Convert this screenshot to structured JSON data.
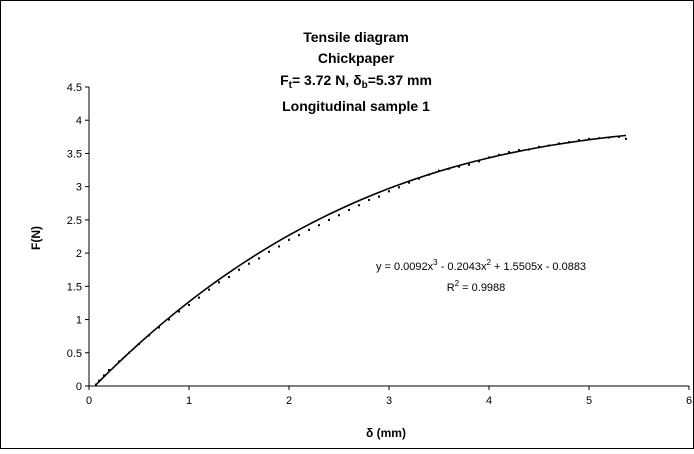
{
  "chart_data": {
    "type": "scatter",
    "title_lines": {
      "line1": "Tensile diagram",
      "line2": "Chickpaper",
      "line3_ft": "F",
      "line3_ft_sub": "t",
      "line3_mid": "= 3.72 N, ",
      "line3_delta": "δ",
      "line3_delta_sub": "b",
      "line3_end": "=5.37 mm",
      "line4": "Longitudinal sample 1"
    },
    "xlabel": "δ (mm)",
    "ylabel": "F(N)",
    "xlim": [
      0,
      6
    ],
    "ylim": [
      0,
      4.5
    ],
    "x_ticks": [
      "0",
      "1",
      "2",
      "3",
      "4",
      "5",
      "6"
    ],
    "y_ticks": [
      "0",
      "0.5",
      "1",
      "1.5",
      "2",
      "2.5",
      "3",
      "3.5",
      "4",
      "4.5"
    ],
    "grid": false,
    "legend": "none",
    "trendline": {
      "type": "polynomial",
      "order": 3,
      "coefficients": [
        0.0092,
        -0.2043,
        1.5505,
        -0.0883
      ],
      "x_range": [
        0.07,
        5.37
      ],
      "equation_parts": {
        "p1": "y = 0.0092x",
        "e1": "3",
        "p2": " - 0.2043x",
        "e2": "2",
        "p3": " + 1.5505x - 0.0883"
      },
      "r2_parts": {
        "r": "R",
        "e": "2",
        "rest": " = 0.9988"
      }
    },
    "series": [
      {
        "x": [
          0.07,
          0.1,
          0.15,
          0.2,
          0.3,
          0.4,
          0.5,
          0.6,
          0.7,
          0.8,
          0.9,
          1.0,
          1.1,
          1.2,
          1.3,
          1.4,
          1.5,
          1.6,
          1.7,
          1.8,
          1.9,
          2.0,
          2.1,
          2.2,
          2.3,
          2.4,
          2.5,
          2.6,
          2.7,
          2.8,
          2.9,
          3.0,
          3.1,
          3.2,
          3.3,
          3.4,
          3.5,
          3.6,
          3.7,
          3.8,
          3.9,
          4.0,
          4.1,
          4.2,
          4.3,
          4.4,
          4.5,
          4.6,
          4.7,
          4.8,
          4.9,
          5.0,
          5.1,
          5.2,
          5.3,
          5.37
        ],
        "y": [
          0.02,
          0.08,
          0.16,
          0.24,
          0.37,
          0.5,
          0.63,
          0.76,
          0.88,
          1.0,
          1.12,
          1.22,
          1.33,
          1.45,
          1.56,
          1.64,
          1.75,
          1.84,
          1.92,
          2.02,
          2.1,
          2.2,
          2.27,
          2.35,
          2.42,
          2.5,
          2.57,
          2.65,
          2.72,
          2.8,
          2.85,
          2.93,
          2.99,
          3.06,
          3.12,
          3.18,
          3.24,
          3.27,
          3.3,
          3.33,
          3.38,
          3.44,
          3.48,
          3.52,
          3.55,
          3.56,
          3.6,
          3.62,
          3.65,
          3.67,
          3.7,
          3.72,
          3.73,
          3.74,
          3.75,
          3.72
        ]
      }
    ]
  }
}
